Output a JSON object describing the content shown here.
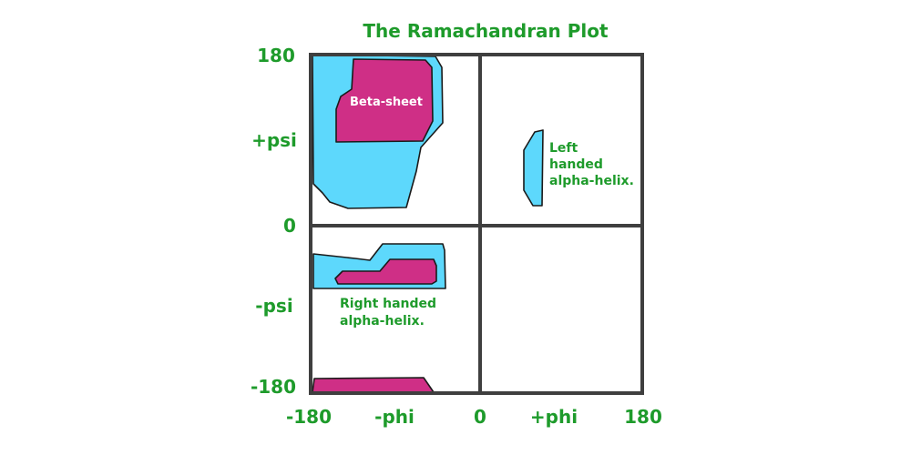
{
  "title": "The Ramachandran Plot",
  "axes": {
    "x_ticks": [
      "-180",
      "-phi",
      "0",
      "+phi",
      "180"
    ],
    "y_ticks": [
      "180",
      "+psi",
      "0",
      "-psi",
      "-180"
    ]
  },
  "regions": {
    "beta_sheet": "Beta-sheet",
    "left_handed_alpha_helix": [
      "Left",
      "handed",
      "alpha-helix."
    ],
    "right_handed_alpha_helix": [
      "Right handed",
      "alpha-helix."
    ]
  },
  "colors": {
    "allowed_region": "#5dd8fc",
    "core_region": "#cf2f86",
    "text_green": "#1e9b2b",
    "frame": "#3f3f3f"
  }
}
